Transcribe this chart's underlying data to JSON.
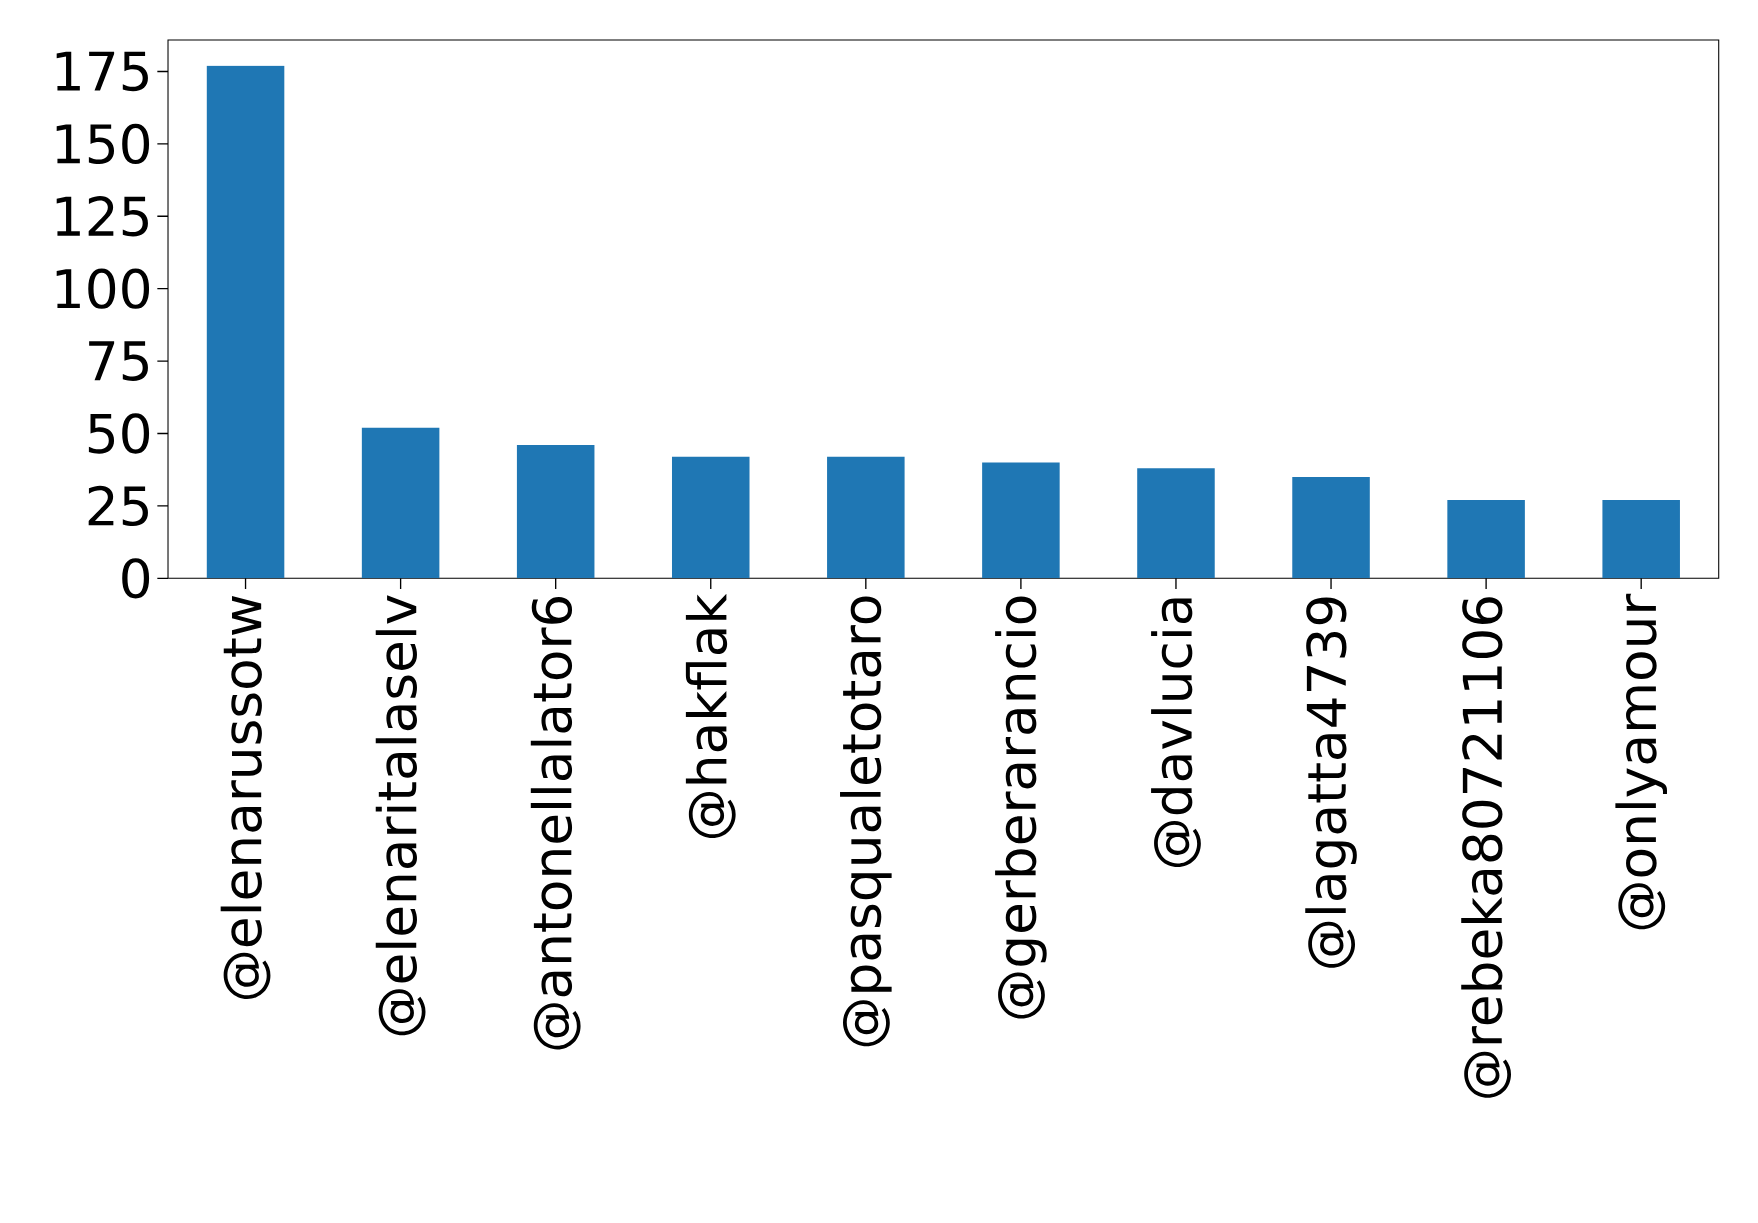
{
  "chart_data": {
    "type": "bar",
    "categories": [
      "@elenarussotw",
      "@elenaritalaselv",
      "@antonellalator6",
      "@hakflak",
      "@pasqualetotaro",
      "@gerberarancio",
      "@davlucia",
      "@lagatta4739",
      "@rebeka80721106",
      "@onlyamour"
    ],
    "values": [
      177,
      52,
      46,
      42,
      42,
      40,
      38,
      35,
      27,
      27
    ],
    "color": "#1f77b4",
    "ylim": [
      0,
      185.85
    ],
    "yticks": [
      0,
      25,
      50,
      75,
      100,
      125,
      150,
      175
    ],
    "grid": false
  }
}
